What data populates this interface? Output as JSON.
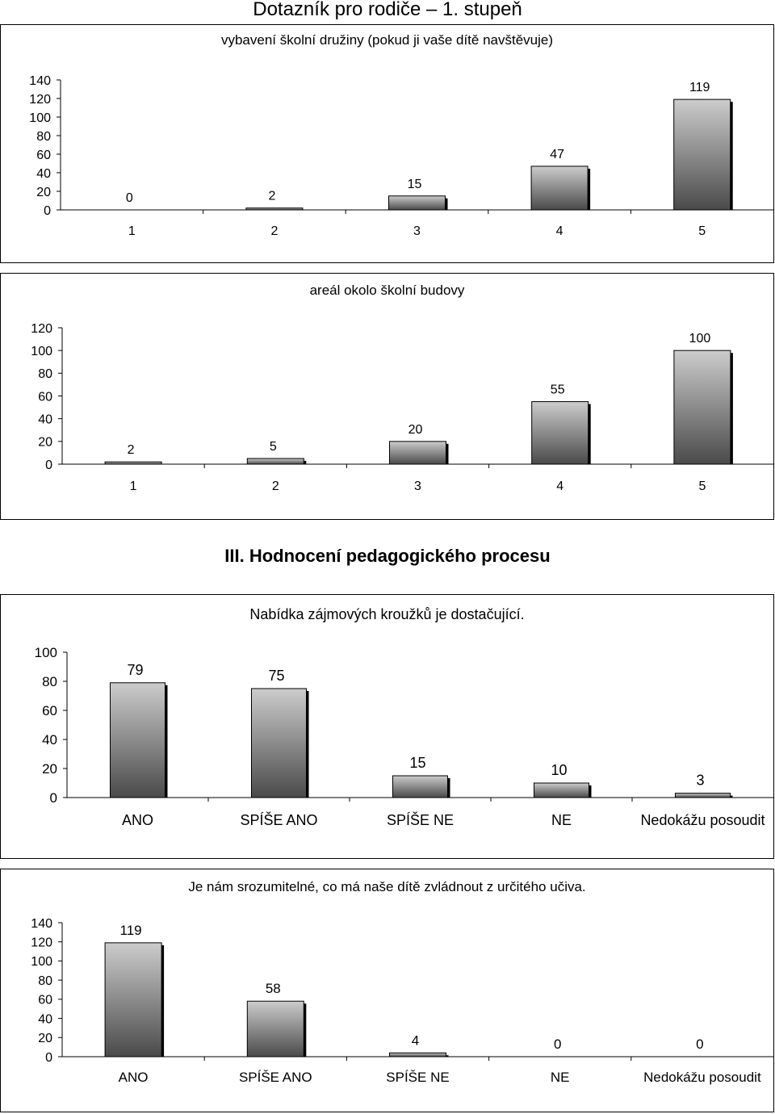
{
  "page": {
    "title": "Dotazník pro rodiče – 1. stupeň"
  },
  "section": {
    "heading": "III. Hodnocení pedagogického procesu"
  },
  "styles": {
    "bar_top": "#cccccc",
    "bar_bottom": "#4a4a4a",
    "bar_shadow": "#000000",
    "frame": "#000000"
  },
  "chart_data": [
    {
      "type": "bar",
      "title": "vybavení školní družiny (pokud ji vaše dítě navštěvuje)",
      "categories": [
        "1",
        "2",
        "3",
        "4",
        "5"
      ],
      "values": [
        0,
        2,
        15,
        47,
        119
      ],
      "value_labels": [
        "0",
        "2",
        "15",
        "47",
        "119"
      ],
      "yticks": [
        0,
        20,
        40,
        60,
        80,
        100,
        120,
        140
      ],
      "ylim": [
        0,
        140
      ],
      "xlabel": "",
      "ylabel": "",
      "grid": false,
      "data_labels": true
    },
    {
      "type": "bar",
      "title": "areál okolo školní budovy",
      "categories": [
        "1",
        "2",
        "3",
        "4",
        "5"
      ],
      "values": [
        2,
        5,
        20,
        55,
        100
      ],
      "value_labels": [
        "2",
        "5",
        "20",
        "55",
        "100"
      ],
      "yticks": [
        0,
        20,
        40,
        60,
        80,
        100,
        120
      ],
      "ylim": [
        0,
        120
      ],
      "xlabel": "",
      "ylabel": "",
      "grid": false,
      "data_labels": true
    },
    {
      "type": "bar",
      "title": "Nabídka zájmových kroužků je dostačující.",
      "categories": [
        "ANO",
        "SPÍŠE ANO",
        "SPÍŠE NE",
        "NE",
        "Nedokážu posoudit"
      ],
      "values": [
        79,
        75,
        15,
        10,
        3
      ],
      "value_labels": [
        "79",
        "75",
        "15",
        "10",
        "3"
      ],
      "yticks": [
        0,
        20,
        40,
        60,
        80,
        100
      ],
      "ylim": [
        0,
        100
      ],
      "xlabel": "",
      "ylabel": "",
      "grid": false,
      "data_labels": true
    },
    {
      "type": "bar",
      "title": "Je nám srozumitelné, co má naše dítě zvládnout z určitého učiva.",
      "categories": [
        "ANO",
        "SPÍŠE ANO",
        "SPÍŠE NE",
        "NE",
        "Nedokážu posoudit"
      ],
      "values": [
        119,
        58,
        4,
        0,
        0
      ],
      "value_labels": [
        "119",
        "58",
        "4",
        "0",
        "0"
      ],
      "yticks": [
        0,
        20,
        40,
        60,
        80,
        100,
        120,
        140
      ],
      "ylim": [
        0,
        140
      ],
      "xlabel": "",
      "ylabel": "",
      "grid": false,
      "data_labels": true
    }
  ]
}
